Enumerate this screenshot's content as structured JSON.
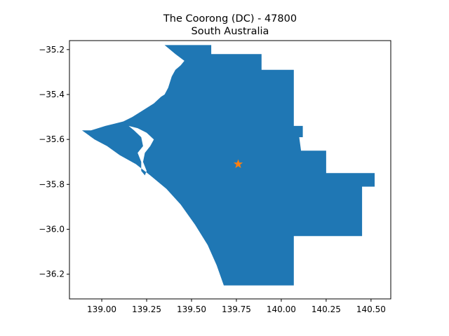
{
  "title": {
    "line1": "The Coorong (DC) - 47800",
    "line2": "South Australia"
  },
  "colors": {
    "region_fill": "#1f77b4",
    "marker": "#ff7f0e",
    "background": "#ffffff"
  },
  "chart_data": {
    "type": "map",
    "title": "The Coorong (DC) - 47800\nSouth Australia",
    "xlabel": "",
    "ylabel": "",
    "xlim": [
      138.82,
      140.61
    ],
    "ylim": [
      -36.31,
      -35.16
    ],
    "grid": false,
    "x_ticks": [
      139.0,
      139.25,
      139.5,
      139.75,
      140.0,
      140.25,
      140.5
    ],
    "x_tick_labels": [
      "139.00",
      "139.25",
      "139.50",
      "139.75",
      "140.00",
      "140.25",
      "140.50"
    ],
    "y_ticks": [
      -35.2,
      -35.4,
      -35.6,
      -35.8,
      -36.0,
      -36.2
    ],
    "y_tick_labels": [
      "−35.2",
      "−35.4",
      "−35.6",
      "−35.8",
      "−36.0",
      "−36.2"
    ],
    "region": {
      "outline": [
        [
          139.35,
          -35.18
        ],
        [
          139.61,
          -35.18
        ],
        [
          139.61,
          -35.22
        ],
        [
          139.89,
          -35.22
        ],
        [
          139.89,
          -35.29
        ],
        [
          140.07,
          -35.29
        ],
        [
          140.07,
          -35.54
        ],
        [
          140.12,
          -35.54
        ],
        [
          140.12,
          -35.59
        ],
        [
          140.1,
          -35.59
        ],
        [
          140.11,
          -35.65
        ],
        [
          140.25,
          -35.65
        ],
        [
          140.25,
          -35.75
        ],
        [
          140.52,
          -35.75
        ],
        [
          140.52,
          -35.81
        ],
        [
          140.45,
          -35.81
        ],
        [
          140.45,
          -36.03
        ],
        [
          140.07,
          -36.03
        ],
        [
          140.07,
          -36.25
        ],
        [
          139.68,
          -36.25
        ],
        [
          139.64,
          -36.16
        ],
        [
          139.59,
          -36.07
        ],
        [
          139.52,
          -35.98
        ],
        [
          139.44,
          -35.89
        ],
        [
          139.36,
          -35.82
        ],
        [
          139.27,
          -35.76
        ],
        [
          139.19,
          -35.71
        ],
        [
          139.1,
          -35.67
        ],
        [
          139.03,
          -35.63
        ],
        [
          138.96,
          -35.6
        ],
        [
          138.89,
          -35.56
        ],
        [
          138.94,
          -35.56
        ],
        [
          138.98,
          -35.55
        ],
        [
          139.02,
          -35.54
        ],
        [
          139.07,
          -35.53
        ],
        [
          139.12,
          -35.52
        ],
        [
          139.17,
          -35.5
        ],
        [
          139.23,
          -35.47
        ],
        [
          139.29,
          -35.44
        ],
        [
          139.33,
          -35.41
        ],
        [
          139.35,
          -35.4
        ],
        [
          139.37,
          -35.37
        ],
        [
          139.39,
          -35.32
        ],
        [
          139.41,
          -35.29
        ],
        [
          139.44,
          -35.27
        ],
        [
          139.46,
          -35.25
        ],
        [
          139.41,
          -35.22
        ]
      ],
      "hole": [
        [
          139.15,
          -35.54
        ],
        [
          139.2,
          -35.55
        ],
        [
          139.25,
          -35.57
        ],
        [
          139.29,
          -35.6
        ],
        [
          139.27,
          -35.63
        ],
        [
          139.24,
          -35.66
        ],
        [
          139.23,
          -35.7
        ],
        [
          139.25,
          -35.74
        ],
        [
          139.24,
          -35.76
        ],
        [
          139.22,
          -35.74
        ],
        [
          139.22,
          -35.7
        ],
        [
          139.2,
          -35.66
        ],
        [
          139.23,
          -35.63
        ],
        [
          139.22,
          -35.59
        ],
        [
          139.18,
          -35.56
        ]
      ]
    },
    "marker": {
      "shape": "star",
      "x": 139.76,
      "y": -35.71
    }
  }
}
